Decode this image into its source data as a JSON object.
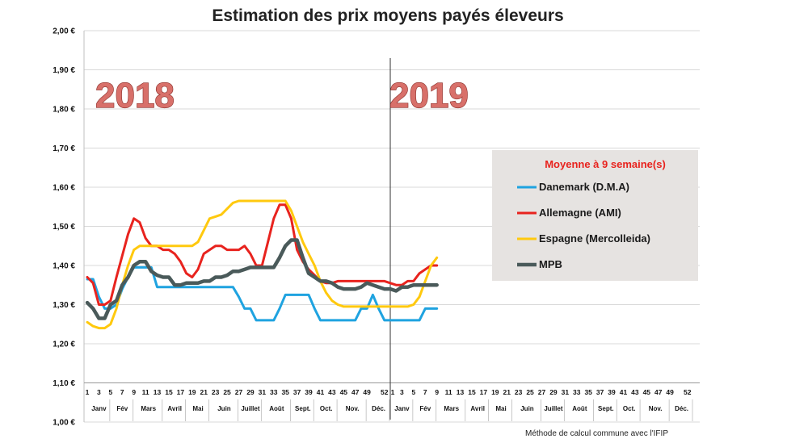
{
  "chart_data": {
    "type": "line",
    "title": "Estimation des prix moyens payés éleveurs",
    "ylim": [
      1.0,
      2.0
    ],
    "yticks": [
      "1,00 €",
      "1,10 €",
      "1,20 €",
      "1,30 €",
      "1,40 €",
      "1,50 €",
      "1,60 €",
      "1,70 €",
      "1,80 €",
      "1,90 €",
      "2,00 €"
    ],
    "week_labels_2018": [
      "1",
      "3",
      "5",
      "7",
      "9",
      "11",
      "13",
      "15",
      "17",
      "19",
      "21",
      "23",
      "25",
      "27",
      "29",
      "31",
      "33",
      "35",
      "37",
      "39",
      "41",
      "43",
      "45",
      "47",
      "49",
      "52"
    ],
    "week_labels_2019": [
      "1",
      "3",
      "5",
      "7",
      "9",
      "11",
      "13",
      "15",
      "17",
      "19",
      "21",
      "23",
      "25",
      "27",
      "29",
      "31",
      "33",
      "35",
      "37",
      "39",
      "41",
      "43",
      "45",
      "47",
      "49",
      "52"
    ],
    "months": [
      "Janv",
      "Fév",
      "Mars",
      "Avril",
      "Mai",
      "Juin",
      "Juillet",
      "Août",
      "Sept.",
      "Oct.",
      "Nov.",
      "Déc.",
      "Janv",
      "Fév",
      "Mars",
      "Avril",
      "Mai",
      "Juin",
      "Juillet",
      "Août",
      "Sept.",
      "Oct.",
      "Nov.",
      "Déc."
    ],
    "year_labels": [
      "2018",
      "2019"
    ],
    "x_note": "x = week index (1-52 for 2018, 53+ for 2019)",
    "grid": "horizontal",
    "legend": {
      "title": "Moyenne à  9 semaine(s)",
      "position": "right"
    },
    "series": [
      {
        "name": "Danemark (D.M.A)",
        "color": "#1fa3e0",
        "x": [
          1,
          2,
          3,
          4,
          5,
          6,
          7,
          8,
          9,
          10,
          11,
          12,
          13,
          14,
          15,
          16,
          18,
          20,
          22,
          24,
          26,
          27,
          28,
          29,
          30,
          31,
          32,
          33,
          34,
          35,
          36,
          37,
          38,
          39,
          40,
          41,
          42,
          44,
          46,
          47,
          48,
          49,
          50,
          51,
          52,
          53,
          54,
          55,
          56,
          57,
          58,
          59,
          60,
          61
        ],
        "y": [
          1.365,
          1.365,
          1.32,
          1.29,
          1.29,
          1.3,
          1.34,
          1.37,
          1.395,
          1.395,
          1.395,
          1.395,
          1.345,
          1.345,
          1.345,
          1.345,
          1.345,
          1.345,
          1.345,
          1.345,
          1.345,
          1.32,
          1.29,
          1.29,
          1.26,
          1.26,
          1.26,
          1.26,
          1.29,
          1.325,
          1.325,
          1.325,
          1.325,
          1.325,
          1.29,
          1.26,
          1.26,
          1.26,
          1.26,
          1.26,
          1.29,
          1.29,
          1.325,
          1.29,
          1.26,
          1.26,
          1.26,
          1.26,
          1.26,
          1.26,
          1.26,
          1.29,
          1.29,
          1.29
        ]
      },
      {
        "name": "Allemagne (AMI)",
        "color": "#e8231e",
        "x": [
          1,
          2,
          3,
          4,
          5,
          6,
          7,
          8,
          9,
          10,
          11,
          12,
          13,
          14,
          15,
          16,
          17,
          18,
          19,
          20,
          21,
          22,
          23,
          24,
          25,
          26,
          27,
          28,
          29,
          30,
          31,
          32,
          33,
          34,
          35,
          36,
          37,
          38,
          39,
          40,
          41,
          42,
          43,
          44,
          45,
          46,
          47,
          48,
          49,
          50,
          51,
          52,
          53,
          54,
          55,
          56,
          57,
          58,
          59,
          60,
          61
        ],
        "y": [
          1.37,
          1.355,
          1.3,
          1.3,
          1.31,
          1.37,
          1.425,
          1.48,
          1.52,
          1.51,
          1.47,
          1.45,
          1.45,
          1.44,
          1.44,
          1.43,
          1.41,
          1.38,
          1.37,
          1.39,
          1.43,
          1.44,
          1.45,
          1.45,
          1.44,
          1.44,
          1.44,
          1.45,
          1.43,
          1.4,
          1.4,
          1.46,
          1.52,
          1.555,
          1.555,
          1.52,
          1.44,
          1.41,
          1.39,
          1.375,
          1.36,
          1.355,
          1.355,
          1.36,
          1.36,
          1.36,
          1.36,
          1.36,
          1.36,
          1.36,
          1.36,
          1.36,
          1.355,
          1.35,
          1.35,
          1.36,
          1.36,
          1.38,
          1.39,
          1.4,
          1.4
        ]
      },
      {
        "name": "Espagne (Mercolleida)",
        "color": "#ffc90e",
        "x": [
          1,
          2,
          3,
          4,
          5,
          6,
          7,
          8,
          9,
          10,
          11,
          12,
          13,
          14,
          15,
          16,
          17,
          18,
          19,
          20,
          21,
          22,
          23,
          24,
          25,
          26,
          27,
          28,
          29,
          30,
          31,
          32,
          33,
          34,
          35,
          36,
          37,
          38,
          39,
          40,
          41,
          42,
          43,
          44,
          45,
          46,
          47,
          48,
          49,
          50,
          51,
          52,
          53,
          54,
          55,
          56,
          57,
          58,
          59,
          60,
          61
        ],
        "y": [
          1.255,
          1.245,
          1.24,
          1.24,
          1.25,
          1.29,
          1.35,
          1.4,
          1.44,
          1.45,
          1.45,
          1.45,
          1.45,
          1.45,
          1.45,
          1.45,
          1.45,
          1.45,
          1.45,
          1.46,
          1.49,
          1.52,
          1.525,
          1.53,
          1.545,
          1.56,
          1.565,
          1.565,
          1.565,
          1.565,
          1.565,
          1.565,
          1.565,
          1.565,
          1.565,
          1.54,
          1.5,
          1.46,
          1.43,
          1.4,
          1.36,
          1.33,
          1.31,
          1.3,
          1.295,
          1.295,
          1.295,
          1.295,
          1.295,
          1.295,
          1.295,
          1.295,
          1.295,
          1.295,
          1.295,
          1.295,
          1.3,
          1.32,
          1.36,
          1.4,
          1.42
        ]
      },
      {
        "name": "MPB",
        "color": "#4a5a5a",
        "x": [
          1,
          2,
          3,
          4,
          5,
          6,
          7,
          8,
          9,
          10,
          11,
          12,
          13,
          14,
          15,
          16,
          17,
          18,
          19,
          20,
          21,
          22,
          23,
          24,
          25,
          26,
          27,
          28,
          29,
          30,
          31,
          32,
          33,
          34,
          35,
          36,
          37,
          38,
          39,
          40,
          41,
          42,
          43,
          44,
          45,
          46,
          47,
          48,
          49,
          50,
          51,
          52,
          53,
          54,
          55,
          56,
          57,
          58,
          59,
          60,
          61
        ],
        "y": [
          1.305,
          1.29,
          1.265,
          1.265,
          1.3,
          1.31,
          1.35,
          1.37,
          1.4,
          1.41,
          1.41,
          1.385,
          1.375,
          1.37,
          1.37,
          1.35,
          1.35,
          1.355,
          1.355,
          1.355,
          1.36,
          1.36,
          1.37,
          1.37,
          1.375,
          1.385,
          1.385,
          1.39,
          1.395,
          1.395,
          1.395,
          1.395,
          1.395,
          1.42,
          1.45,
          1.465,
          1.465,
          1.42,
          1.38,
          1.37,
          1.36,
          1.36,
          1.355,
          1.345,
          1.34,
          1.34,
          1.34,
          1.345,
          1.355,
          1.35,
          1.345,
          1.34,
          1.34,
          1.335,
          1.345,
          1.345,
          1.35,
          1.35,
          1.35,
          1.35,
          1.35
        ]
      }
    ]
  },
  "footnote": "Méthode de calcul commune avec l'IFIP"
}
